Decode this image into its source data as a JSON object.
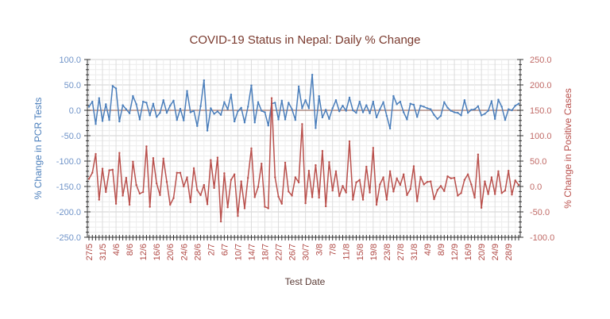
{
  "chart_data": {
    "type": "line",
    "title": "COVID-19 Status in Nepal: Daily % Change",
    "xlabel": "Test Date",
    "ylabel_left": "% Change in PCR Tests",
    "ylabel_right": "% Change in Positive Cases",
    "ylim_left": [
      -250,
      100
    ],
    "ylim_right": [
      -100,
      250
    ],
    "yticks_left": [
      "100.0",
      "50.0",
      "0.0",
      "-50.0",
      "-100.0",
      "-150.0",
      "-200.0",
      "-250.0"
    ],
    "yticks_right": [
      "250.0",
      "200.0",
      "150.0",
      "100.0",
      "50.0",
      "0.0",
      "-50.0",
      "-100.0"
    ],
    "grid": true,
    "colors": {
      "left_series": "#4a7ebb",
      "right_series": "#b9504c",
      "zero_line": "#a0786e",
      "title": "#7a3a2e"
    },
    "xtick_labels": [
      "27/5",
      "31/5",
      "4/6",
      "8/6",
      "12/6",
      "16/6",
      "20/6",
      "24/6",
      "28/6",
      "2/7",
      "6/7",
      "10/7",
      "14/7",
      "18/7",
      "22/7",
      "26/7",
      "30/7",
      "3/8",
      "7/8",
      "11/8",
      "15/8",
      "19/8",
      "23/8",
      "27/8",
      "31/8",
      "4/9",
      "8/9",
      "12/9",
      "16/9",
      "20/9",
      "24/9",
      "28/9"
    ],
    "x": [
      "27/5",
      "28/5",
      "29/5",
      "30/5",
      "31/5",
      "1/6",
      "2/6",
      "3/6",
      "4/6",
      "5/6",
      "6/6",
      "7/6",
      "8/6",
      "9/6",
      "10/6",
      "11/6",
      "12/6",
      "13/6",
      "14/6",
      "15/6",
      "16/6",
      "17/6",
      "18/6",
      "19/6",
      "20/6",
      "21/6",
      "22/6",
      "23/6",
      "24/6",
      "25/6",
      "26/6",
      "27/6",
      "28/6",
      "29/6",
      "30/6",
      "1/7",
      "2/7",
      "3/7",
      "4/7",
      "5/7",
      "6/7",
      "7/7",
      "8/7",
      "9/7",
      "10/7",
      "11/7",
      "12/7",
      "13/7",
      "14/7",
      "15/7",
      "16/7",
      "17/7",
      "18/7",
      "19/7",
      "20/7",
      "21/7",
      "22/7",
      "23/7",
      "24/7",
      "25/7",
      "26/7",
      "27/7",
      "28/7",
      "29/7",
      "30/7",
      "31/7",
      "1/8",
      "2/8",
      "3/8",
      "4/8",
      "5/8",
      "6/8",
      "7/8",
      "8/8",
      "9/8",
      "10/8",
      "11/8",
      "12/8",
      "13/8",
      "14/8",
      "15/8",
      "16/8",
      "17/8",
      "18/8",
      "19/8",
      "20/8",
      "21/8",
      "22/8",
      "23/8",
      "24/8",
      "25/8",
      "26/8",
      "27/8",
      "28/8",
      "29/8",
      "30/8",
      "31/8",
      "1/9",
      "2/9",
      "3/9",
      "4/9",
      "5/9",
      "6/9",
      "7/9",
      "8/9",
      "9/9",
      "10/9",
      "11/9",
      "12/9",
      "13/9",
      "14/9",
      "15/9",
      "16/9",
      "17/9",
      "18/9",
      "19/9",
      "20/9",
      "21/9",
      "22/9",
      "23/9",
      "24/9",
      "25/9",
      "26/9",
      "27/9",
      "28/9",
      "29/9",
      "30/9",
      "1/10"
    ],
    "series": [
      {
        "axis": "left",
        "values": [
          7,
          17,
          -27,
          24,
          -21,
          12,
          -19,
          48,
          43,
          -22,
          10,
          2,
          -6,
          28,
          12,
          -18,
          17,
          15,
          -10,
          13,
          -13,
          -5,
          20,
          -5,
          9,
          19,
          -19,
          3,
          -20,
          38,
          -4,
          -1,
          -31,
          8,
          59,
          -40,
          4,
          -7,
          -2,
          -9,
          16,
          2,
          31,
          -22,
          -2,
          5,
          -24,
          7,
          49,
          -24,
          16,
          -1,
          -4,
          -30,
          13,
          15,
          -18,
          19,
          -18,
          15,
          2,
          -19,
          47,
          4,
          20,
          4,
          70,
          -35,
          28,
          -14,
          1,
          -17,
          4,
          20,
          -2,
          9,
          -1,
          25,
          0,
          -5,
          17,
          -4,
          10,
          -6,
          17,
          -14,
          2,
          16,
          -11,
          -36,
          28,
          12,
          17,
          -4,
          -18,
          13,
          11,
          -13,
          9,
          7,
          4,
          2,
          -9,
          -17,
          -11,
          16,
          5,
          -1,
          -4,
          -5,
          -10,
          20,
          -5,
          1,
          2,
          8,
          -10,
          -7,
          -1,
          18,
          -17,
          21,
          7,
          -19,
          2,
          0,
          9,
          13
        ]
      },
      {
        "axis": "right",
        "values": [
          15,
          27,
          64,
          -26,
          35,
          -11,
          32,
          33,
          -34,
          66,
          -18,
          17,
          -36,
          49,
          3,
          -14,
          -11,
          79,
          -40,
          56,
          6,
          -17,
          55,
          9,
          -36,
          -23,
          27,
          27,
          0,
          18,
          -31,
          36,
          -7,
          -17,
          3,
          -35,
          52,
          -3,
          57,
          -69,
          26,
          -41,
          13,
          24,
          -58,
          10,
          -43,
          17,
          75,
          -21,
          -1,
          45,
          -40,
          -43,
          174,
          18,
          -20,
          -34,
          47,
          -10,
          -18,
          18,
          8,
          123,
          -33,
          31,
          -21,
          42,
          -22,
          70,
          -39,
          48,
          -8,
          30,
          -19,
          1,
          -12,
          89,
          -26,
          8,
          13,
          -26,
          39,
          -12,
          76,
          -36,
          4,
          18,
          -26,
          30,
          -10,
          16,
          3,
          24,
          -17,
          -5,
          40,
          -29,
          19,
          4,
          9,
          10,
          -25,
          -7,
          1,
          -9,
          20,
          16,
          17,
          -18,
          -13,
          13,
          24,
          4,
          -22,
          63,
          -42,
          10,
          -15,
          18,
          -15,
          30,
          -13,
          -8,
          31,
          -16,
          12,
          3
        ]
      }
    ]
  }
}
